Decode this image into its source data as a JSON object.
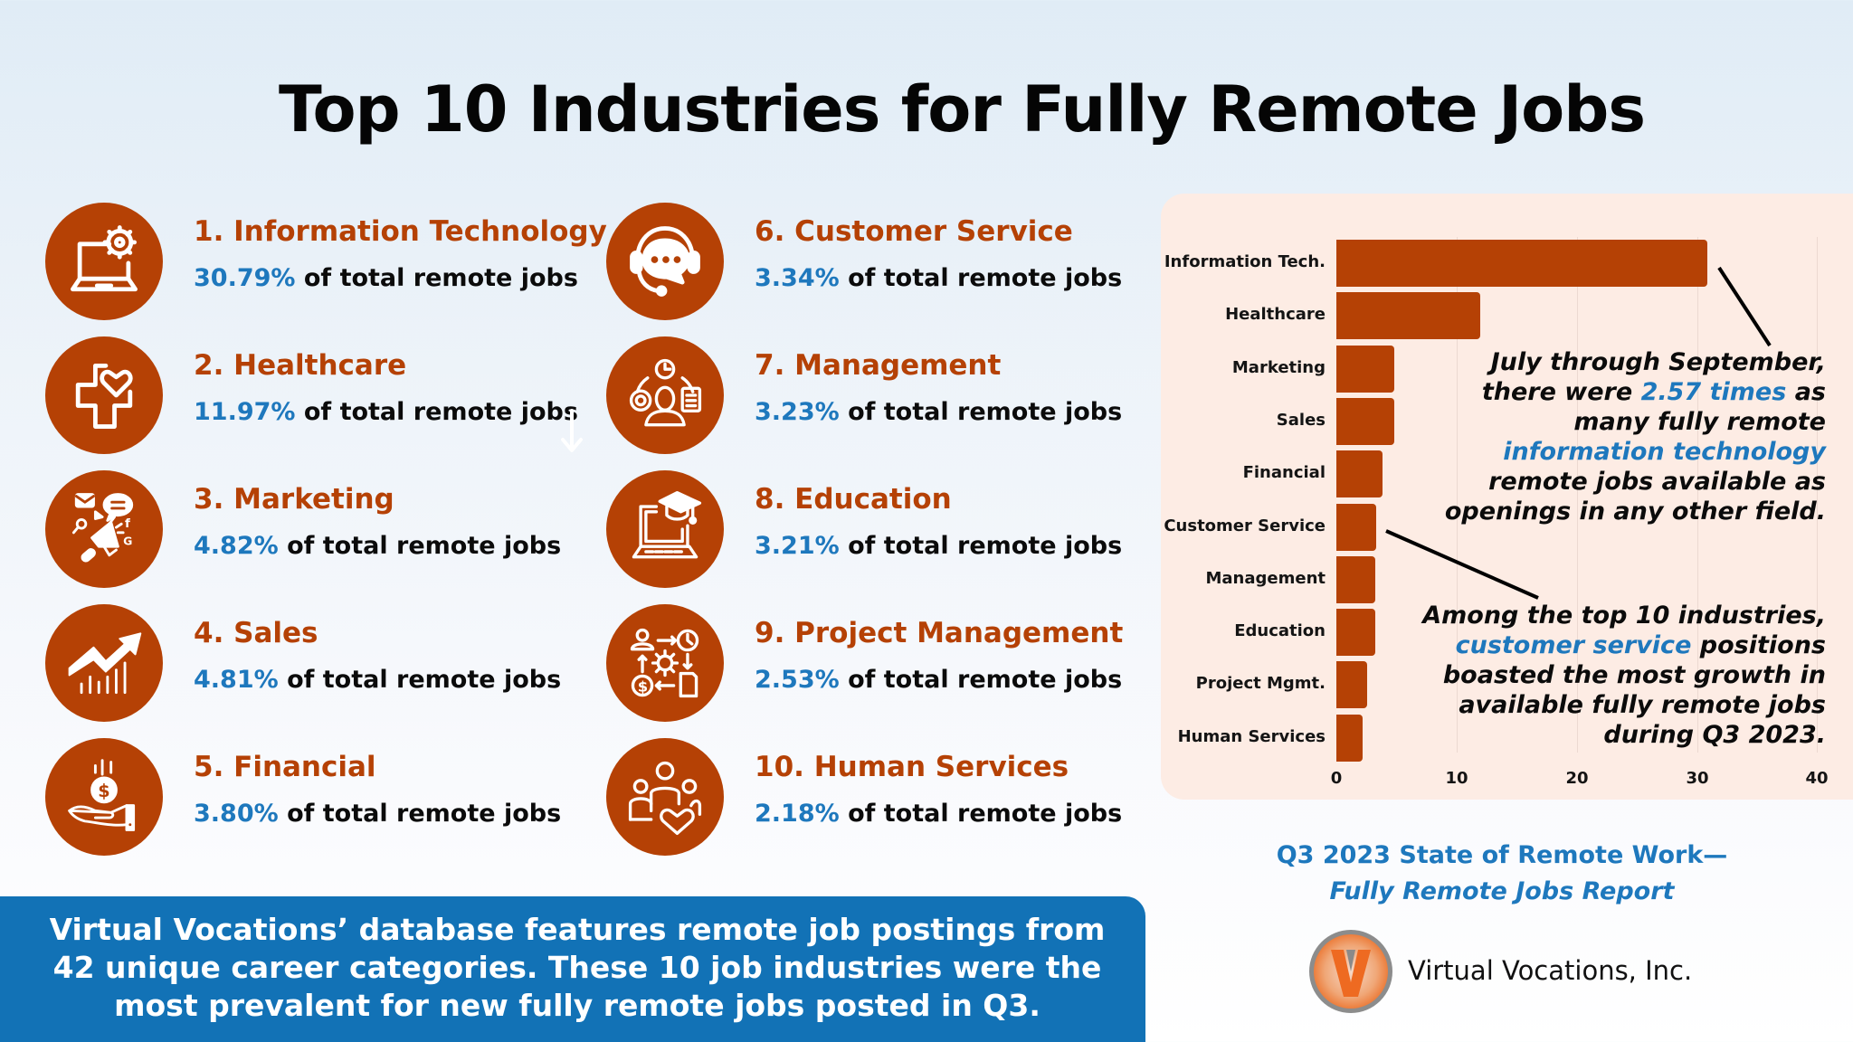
{
  "header": {
    "title": "Top 10 Industries for Fully Remote Jobs"
  },
  "stat_suffix": "of total remote jobs",
  "industries": [
    {
      "rank": 1,
      "title": "1. Information Technology",
      "pct": "30.79%",
      "icon": "laptop-gear-icon"
    },
    {
      "rank": 2,
      "title": "2. Healthcare",
      "pct": "11.97%",
      "icon": "medical-cross-heart-icon"
    },
    {
      "rank": 3,
      "title": "3. Marketing",
      "pct": "4.82%",
      "icon": "megaphone-icon"
    },
    {
      "rank": 4,
      "title": "4. Sales",
      "pct": "4.81%",
      "icon": "trend-up-arrow-icon"
    },
    {
      "rank": 5,
      "title": "5. Financial",
      "pct": "3.80%",
      "icon": "hand-coin-icon"
    },
    {
      "rank": 6,
      "title": "6. Customer Service",
      "pct": "3.34%",
      "icon": "headset-chat-icon"
    },
    {
      "rank": 7,
      "title": "7. Management",
      "pct": "3.23%",
      "icon": "manager-workflow-icon"
    },
    {
      "rank": 8,
      "title": "8. Education",
      "pct": "3.21%",
      "icon": "laptop-graduation-cap-icon"
    },
    {
      "rank": 9,
      "title": "9. Project Management",
      "pct": "2.53%",
      "icon": "process-cycle-icon"
    },
    {
      "rank": 10,
      "title": "10. Human Services",
      "pct": "2.18%",
      "icon": "people-heart-icon"
    }
  ],
  "chart_data": {
    "type": "bar",
    "orientation": "horizontal",
    "title": "",
    "xlabel": "",
    "ylabel": "",
    "categories": [
      "Information Tech.",
      "Healthcare",
      "Marketing",
      "Sales",
      "Financial",
      "Customer Service",
      "Management",
      "Education",
      "Project Mgmt.",
      "Human Services"
    ],
    "values": [
      30.79,
      11.97,
      4.82,
      4.81,
      3.8,
      3.34,
      3.23,
      3.21,
      2.53,
      2.18
    ],
    "xlim": [
      0,
      40
    ],
    "xticks": [
      "0",
      "10",
      "20",
      "30",
      "40"
    ],
    "grid": "vertical",
    "bar_color": "#b54105",
    "background": "#fdece4",
    "annotations": [
      {
        "target": "Information Tech.",
        "parts": [
          {
            "text": "July through September, there were ",
            "highlight": false
          },
          {
            "text": "2.57 times",
            "highlight": true
          },
          {
            "text": " as many fully remote ",
            "highlight": false
          },
          {
            "text": "information technology",
            "highlight": true
          },
          {
            "text": " remote jobs available as openings in any other field.",
            "highlight": false
          }
        ]
      },
      {
        "target": "Customer Service",
        "parts": [
          {
            "text": "Among the top 10 industries, ",
            "highlight": false
          },
          {
            "text": "customer service",
            "highlight": true
          },
          {
            "text": " positions boasted the most growth in available fully remote jobs during Q3 2023.",
            "highlight": false
          }
        ]
      }
    ]
  },
  "annotation1": {
    "l1": "July through September,",
    "l2a": "there were ",
    "l2b": "2.57 times",
    "l2c": " as",
    "l3": "many fully remote",
    "l4": "information technology",
    "l5": "remote jobs available as",
    "l6": "openings in any other field."
  },
  "annotation2": {
    "l1": "Among the top 10 industries,",
    "l2a": "customer service",
    "l2b": " positions",
    "l3": "boasted the most growth in",
    "l4": "available fully remote jobs",
    "l5": "during Q3 2023."
  },
  "banner": {
    "line1": "Virtual Vocations’ database features remote job postings from",
    "line2": "42 unique career categories. These 10 job industries were the",
    "line3": "most prevalent for new fully remote jobs posted in Q3."
  },
  "report": {
    "title": "Q3 2023 State of Remote Work—",
    "subtitle": "Fully Remote Jobs Report"
  },
  "brand": {
    "name": "Virtual Vocations, Inc.",
    "logo_letter": "V",
    "accent": "#b54105",
    "highlight": "#1e78bd",
    "banner_color": "#1272b6"
  }
}
